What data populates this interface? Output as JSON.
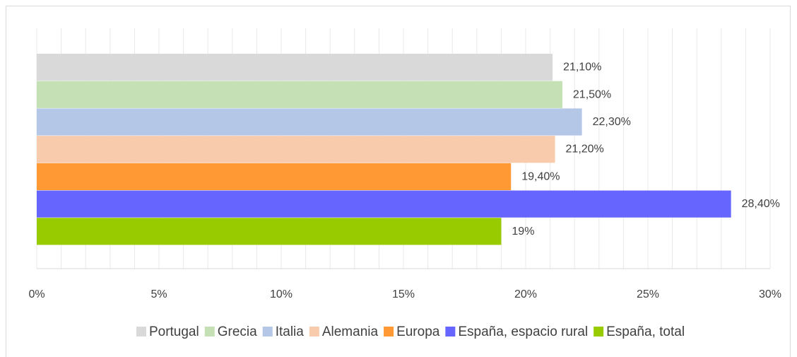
{
  "chart_data": {
    "type": "hbar",
    "categories": [
      null
    ],
    "series": [
      {
        "name": "Portugal",
        "color": "#d9d9d9",
        "values": [
          21.1
        ],
        "value_labels": [
          "21,10%"
        ]
      },
      {
        "name": "Grecia",
        "color": "#c5e0b4",
        "values": [
          21.5
        ],
        "value_labels": [
          "21,50%"
        ]
      },
      {
        "name": "Italia",
        "color": "#b4c7e7",
        "values": [
          22.3
        ],
        "value_labels": [
          "22,30%"
        ]
      },
      {
        "name": "Alemania",
        "color": "#f8cbad",
        "values": [
          21.2
        ],
        "value_labels": [
          "21,20%"
        ]
      },
      {
        "name": "Europa",
        "color": "#ff9933",
        "values": [
          19.4
        ],
        "value_labels": [
          "19,40%"
        ]
      },
      {
        "name": "España, espacio rural",
        "color": "#6666ff",
        "values": [
          28.4
        ],
        "value_labels": [
          "28,40%"
        ]
      },
      {
        "name": "España, total",
        "color": "#99cc00",
        "values": [
          19
        ],
        "value_labels": [
          "19%"
        ]
      }
    ],
    "xlim": [
      0,
      30
    ],
    "xticks": [
      {
        "value": 0,
        "label": "0%"
      },
      {
        "value": 5,
        "label": "5%"
      },
      {
        "value": 10,
        "label": "10%"
      },
      {
        "value": 15,
        "label": "15%"
      },
      {
        "value": 20,
        "label": "20%"
      },
      {
        "value": 25,
        "label": "25%"
      },
      {
        "value": 30,
        "label": "30%"
      }
    ],
    "minor_xticks": [
      0,
      1,
      2,
      3,
      4,
      5,
      6,
      7,
      8,
      9,
      10,
      11,
      12,
      13,
      14,
      15,
      16,
      17,
      18,
      19,
      20,
      21,
      22,
      23,
      24,
      25,
      26,
      27,
      28,
      29,
      30
    ],
    "grid": true,
    "legend": "bottom"
  }
}
